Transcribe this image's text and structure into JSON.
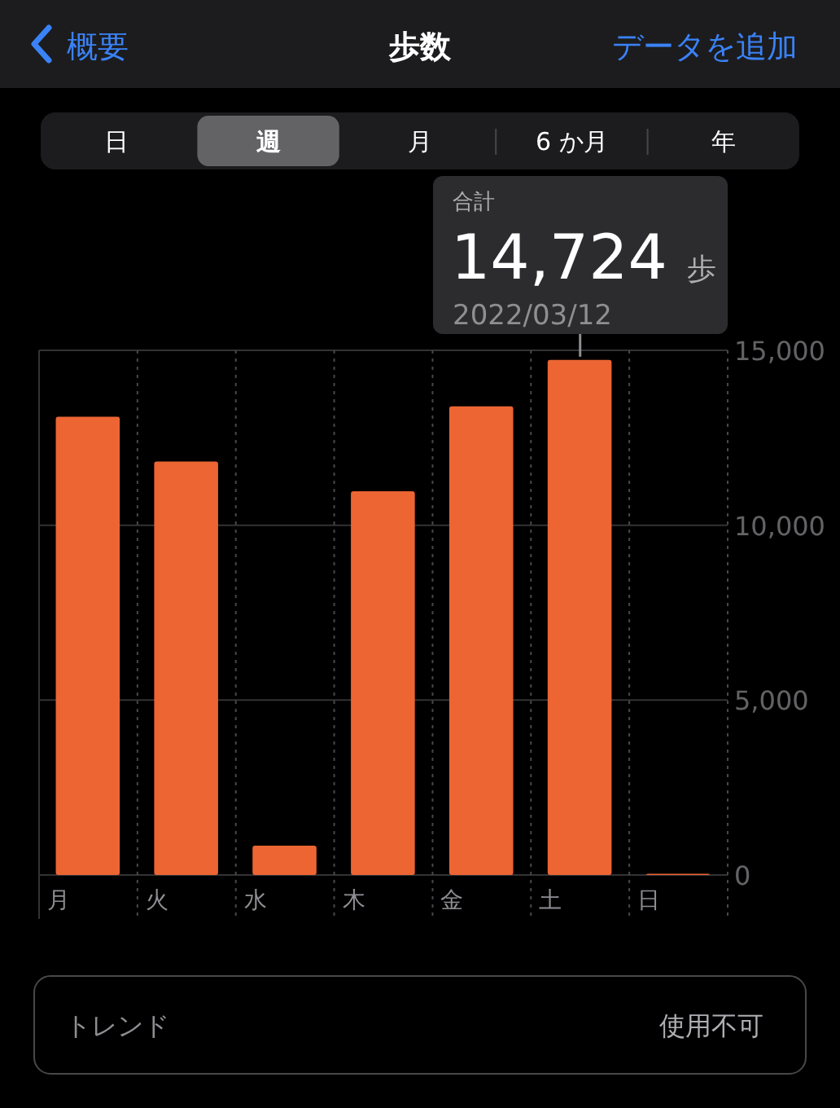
{
  "chart_data": {
    "type": "bar",
    "title": "歩数",
    "categories": [
      "月",
      "火",
      "水",
      "木",
      "金",
      "土",
      "日"
    ],
    "values": [
      13100,
      11820,
      840,
      10970,
      13400,
      14724,
      20
    ],
    "color": "#ec6533",
    "ylim": [
      0,
      15000
    ],
    "yticks": [
      0,
      {
        "value": 5000,
        "label": "5,000"
      },
      {
        "value": 10000,
        "label": "10,000"
      },
      {
        "value": 15000,
        "label": "15,000"
      }
    ],
    "grid": true,
    "annotations": [
      "概要",
      "データを追加",
      "日",
      "週",
      "月",
      "6 か月",
      "年",
      "合計",
      {
        "text": "14,724 歩",
        "x": "土",
        "y": 14724
      },
      "2022/03/12",
      "トレンド",
      "使用不可"
    ]
  }
}
